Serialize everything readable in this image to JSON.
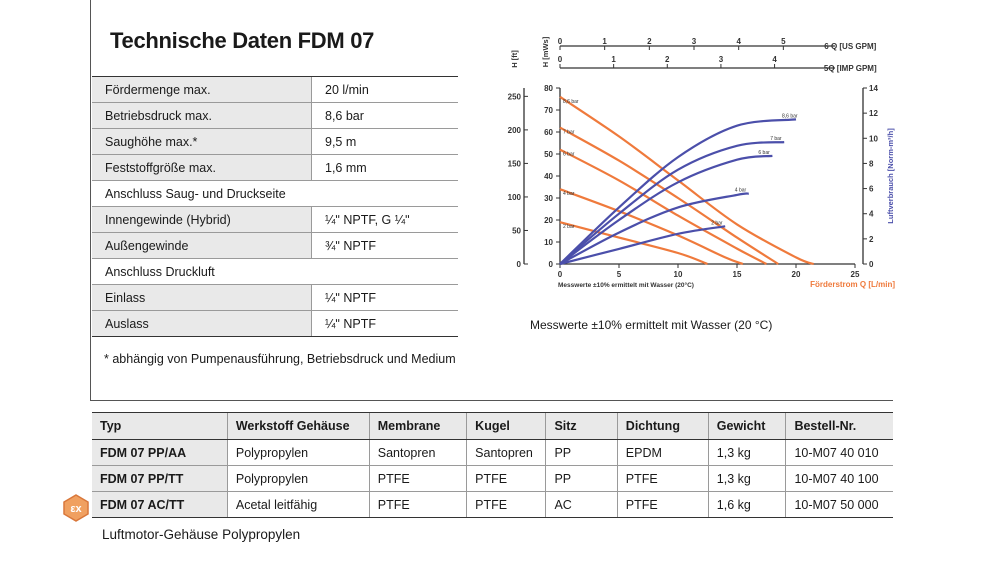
{
  "title": "Technische Daten FDM 07",
  "specs": [
    {
      "label": "Fördermenge max.",
      "value": "20 l/min"
    },
    {
      "label": "Betriebsdruck max.",
      "value": "8,6 bar"
    },
    {
      "label": "Saughöhe max.*",
      "value": "9,5 m"
    },
    {
      "label": "Feststoffgröße max.",
      "value": "1,6 mm"
    },
    {
      "label": "Anschluss Saug- und Druckseite"
    },
    {
      "label": "Innengewinde (Hybrid)",
      "value": "¼ʺ NPTF, G ¼ʺ"
    },
    {
      "label": "Außengewinde",
      "value": "¾ʺ NPTF"
    },
    {
      "label": "Anschluss Druckluft"
    },
    {
      "label": "Einlass",
      "value": "¼ʺ NPTF"
    },
    {
      "label": "Auslass",
      "value": "¼ʺ NPTF"
    }
  ],
  "footnote": "* abhängig von Pumpenausführung, Betriebsdruck und Medium",
  "table": {
    "headers": [
      "Typ",
      "Werkstoff Gehäuse",
      "Membrane",
      "Kugel",
      "Sitz",
      "Dichtung",
      "Gewicht",
      "Bestell-Nr."
    ],
    "rows": [
      [
        "FDM 07 PP/AA",
        "Polypropylen",
        "Santopren",
        "Santopren",
        "PP",
        "EPDM",
        "1,3 kg",
        "10-M07 40 010"
      ],
      [
        "FDM 07 PP/TT",
        "Polypropylen",
        "PTFE",
        "PTFE",
        "PP",
        "PTFE",
        "1,3 kg",
        "10-M07 40 100"
      ],
      [
        "FDM 07 AC/TT",
        "Acetal leitfähig",
        "PTFE",
        "PTFE",
        "AC",
        "PTFE",
        "1,6 kg",
        "10-M07 50 000"
      ]
    ]
  },
  "bottom_caption": "Luftmotor-Gehäuse Polypropylen",
  "atex_icon": "atex-ex-icon",
  "chart_caption": "Messwerte ±10% ermittelt mit Wasser (20 °C)",
  "chart_data": {
    "type": "line",
    "xlabel": "Förderstrom Q [L/min]",
    "xlabel_left": "Messwerte ±10% ermittelt mit Wasser (20°C)",
    "ylabel_ft": "H [ft]",
    "ylabel_m": "H [mWs]",
    "y2label": "Luftverbrauch [Norm-m³/h]",
    "x_top1_label": "6 Q [US GPM]",
    "x_top2_label": "5Q [IMP GPM]",
    "xlim": [
      0,
      25
    ],
    "ylim": [
      0,
      80
    ],
    "y2lim": [
      0,
      14
    ],
    "x_ticks": [
      "0",
      "5",
      "10",
      "15",
      "20",
      "25"
    ],
    "y_ticks": [
      "0",
      "10",
      "20",
      "30",
      "40",
      "50",
      "60",
      "70",
      "80"
    ],
    "y_ft_ticks": [
      {
        "label": "0",
        "m": 0
      },
      {
        "label": "50",
        "m": 15.24
      },
      {
        "label": "100",
        "m": 30.48
      },
      {
        "label": "150",
        "m": 45.72
      },
      {
        "label": "200",
        "m": 60.96
      },
      {
        "label": "250",
        "m": 76.2
      }
    ],
    "y2_ticks": [
      "0",
      "2",
      "4",
      "6",
      "8",
      "10",
      "12",
      "14"
    ],
    "top_us_ticks": [
      {
        "label": "0",
        "lpm": 0
      },
      {
        "label": "1",
        "lpm": 3.785
      },
      {
        "label": "2",
        "lpm": 7.571
      },
      {
        "label": "3",
        "lpm": 11.356
      },
      {
        "label": "4",
        "lpm": 15.142
      },
      {
        "label": "5",
        "lpm": 18.927
      }
    ],
    "top_imp_ticks": [
      {
        "label": "0",
        "lpm": 0
      },
      {
        "label": "1",
        "lpm": 4.546
      },
      {
        "label": "2",
        "lpm": 9.092
      },
      {
        "label": "3",
        "lpm": 13.638
      },
      {
        "label": "4",
        "lpm": 18.184
      }
    ],
    "pressure_curves": [
      {
        "label": "8,6 bar",
        "points": [
          [
            0,
            76
          ],
          [
            5,
            58
          ],
          [
            10,
            38
          ],
          [
            15,
            18
          ],
          [
            20,
            3
          ],
          [
            21.5,
            0
          ]
        ]
      },
      {
        "label": "7 bar",
        "points": [
          [
            0,
            62
          ],
          [
            5,
            47
          ],
          [
            10,
            30
          ],
          [
            15,
            12
          ],
          [
            18.5,
            0
          ]
        ]
      },
      {
        "label": "6 bar",
        "points": [
          [
            0,
            52
          ],
          [
            5,
            38
          ],
          [
            10,
            22
          ],
          [
            15,
            7
          ],
          [
            17.5,
            0
          ]
        ]
      },
      {
        "label": "4 bar",
        "points": [
          [
            0,
            34
          ],
          [
            5,
            24
          ],
          [
            10,
            13
          ],
          [
            14,
            3
          ],
          [
            15.5,
            0
          ]
        ]
      },
      {
        "label": "2 bar",
        "points": [
          [
            0,
            19
          ],
          [
            5,
            12
          ],
          [
            10,
            5
          ],
          [
            12.5,
            0
          ]
        ]
      }
    ],
    "air_curves": [
      {
        "label": "8,6 bar",
        "points": [
          [
            0,
            0
          ],
          [
            5,
            4.5
          ],
          [
            10,
            8.5
          ],
          [
            15,
            11
          ],
          [
            20,
            11.5
          ]
        ]
      },
      {
        "label": "7 bar",
        "points": [
          [
            0,
            0
          ],
          [
            5,
            4
          ],
          [
            10,
            7.5
          ],
          [
            15,
            9.4
          ],
          [
            19,
            9.7
          ]
        ]
      },
      {
        "label": "6 bar",
        "points": [
          [
            0,
            0
          ],
          [
            5,
            3.5
          ],
          [
            10,
            6.5
          ],
          [
            15,
            8.3
          ],
          [
            18,
            8.6
          ]
        ]
      },
      {
        "label": "4 bar",
        "points": [
          [
            0,
            0
          ],
          [
            5,
            2.5
          ],
          [
            10,
            4.5
          ],
          [
            15,
            5.5
          ],
          [
            16,
            5.6
          ]
        ]
      },
      {
        "label": "2 bar",
        "points": [
          [
            0,
            0
          ],
          [
            5,
            1.2
          ],
          [
            10,
            2.4
          ],
          [
            14,
            3
          ]
        ]
      }
    ],
    "colors": {
      "pressure": "#ef7a3c",
      "air": "#4b4faa",
      "axis": "#333333",
      "xlabel_right": "#ef7a3c",
      "y2label": "#4b4faa"
    }
  }
}
